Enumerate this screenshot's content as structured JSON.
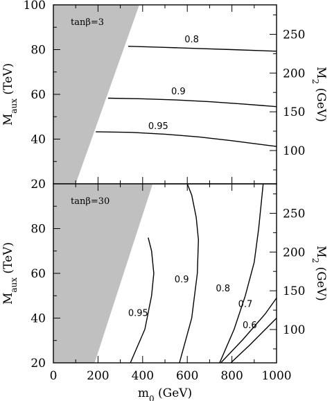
{
  "chart_data": [
    {
      "type": "line",
      "panel": "top",
      "panel_label": "tanβ=3",
      "xlabel": "m0 (GeV)",
      "ylabel": "Maux (TeV)",
      "y2label": "M2 (GeV)",
      "xlim": [
        0,
        1000
      ],
      "ylim": [
        20,
        100
      ],
      "y2lim": [
        57,
        288
      ],
      "x_ticks": [
        "0",
        "200",
        "400",
        "600",
        "800",
        "1000"
      ],
      "y_ticks": [
        "20",
        "40",
        "60",
        "80",
        "100"
      ],
      "y2_ticks": [
        "100",
        "150",
        "200",
        "250"
      ],
      "excluded_region": {
        "color": "#c0c0c0",
        "boundary": [
          [
            100,
            20
          ],
          [
            385,
            100
          ]
        ]
      },
      "series": [
        {
          "name": "0.8",
          "x": [
            335,
            500,
            650,
            800,
            1000
          ],
          "y": [
            81.5,
            81.0,
            80.5,
            80.0,
            79.3
          ],
          "label_at": [
            620,
            83.2
          ]
        },
        {
          "name": "0.9",
          "x": [
            245,
            400,
            550,
            700,
            850,
            1000
          ],
          "y": [
            58.3,
            58.0,
            57.5,
            56.7,
            55.7,
            54.5
          ],
          "label_at": [
            560,
            60.0
          ]
        },
        {
          "name": "0.95",
          "x": [
            190,
            350,
            500,
            650,
            800,
            1000
          ],
          "y": [
            43.3,
            43.0,
            42.2,
            41.0,
            39.3,
            36.7
          ],
          "label_at": [
            470,
            44.5
          ]
        }
      ]
    },
    {
      "type": "line",
      "panel": "bottom",
      "panel_label": "tanβ=30",
      "xlabel": "m0 (GeV)",
      "ylabel": "Maux (TeV)",
      "y2label": "M2 (GeV)",
      "xlim": [
        0,
        1000
      ],
      "ylim": [
        20,
        100
      ],
      "y2lim": [
        57,
        288
      ],
      "x_ticks": [
        "0",
        "200",
        "400",
        "600",
        "800",
        "1000"
      ],
      "y_ticks": [
        "20",
        "40",
        "60",
        "80",
        "100"
      ],
      "y2_ticks": [
        "100",
        "150",
        "200",
        "250"
      ],
      "excluded_region": {
        "color": "#c0c0c0",
        "boundary": [
          [
            185,
            20
          ],
          [
            445,
            100
          ]
        ]
      },
      "series": [
        {
          "name": "0.95",
          "x": [
            345,
            410,
            440,
            450,
            440,
            425
          ],
          "y": [
            20,
            35,
            50,
            60,
            70,
            76
          ],
          "label_at": [
            380,
            41
          ]
        },
        {
          "name": "0.9",
          "x": [
            565,
            620,
            645,
            650,
            640,
            620,
            600
          ],
          "y": [
            20,
            40,
            60,
            75,
            85,
            95,
            100
          ],
          "label_at": [
            575,
            56
          ]
        },
        {
          "name": "0.8",
          "x": [
            745,
            810,
            860,
            900,
            920,
            935,
            940
          ],
          "y": [
            20,
            35,
            50,
            65,
            80,
            95,
            100
          ],
          "label_at": [
            760,
            52
          ]
        },
        {
          "name": "0.7",
          "x": [
            750,
            850,
            950,
            1000
          ],
          "y": [
            20,
            30.5,
            42,
            49
          ],
          "label_at": [
            860,
            45
          ]
        },
        {
          "name": "0.6",
          "x": [
            795,
            880,
            950,
            1000
          ],
          "y": [
            20,
            28,
            35,
            40
          ],
          "label_at": [
            880,
            35.5
          ]
        }
      ]
    }
  ]
}
